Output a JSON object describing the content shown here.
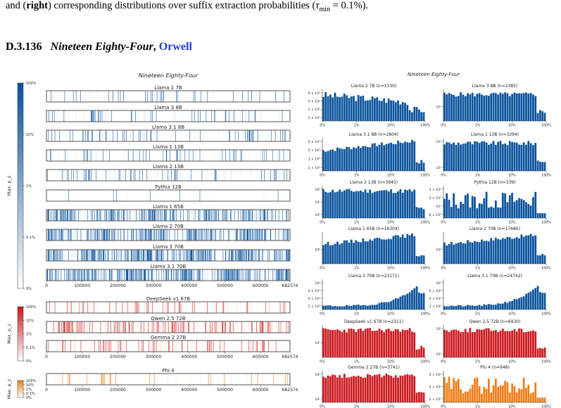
{
  "caption": {
    "prefix": "and (",
    "bold": "right",
    "rest": ") corresponding distributions over suffix extraction probabilities (",
    "tau": "τ",
    "tau_sub": "min",
    "tau_rest": " = 0.1%)."
  },
  "section": {
    "number": "D.3.136",
    "title": "Nineteen Eighty-Four",
    "comma": ",",
    "author": "Orwell"
  },
  "colors": {
    "blue": "#08519c",
    "red": "#cb181d",
    "orange": "#f07c16"
  },
  "chart_data": [
    {
      "type": "heatmap",
      "title": "Nineteen Eighty-Four",
      "x_ticks": [
        "0",
        "100000",
        "200000",
        "300000",
        "400000",
        "500000",
        "600000",
        "682574"
      ],
      "x_range": [
        0,
        682574
      ],
      "groups": [
        {
          "color": "blue",
          "colorbar_label": "Max. p_z",
          "colorbar_ticks": [
            "100%",
            "10%",
            "1%",
            "0.1%",
            "0%"
          ],
          "series": [
            {
              "name": "Llama 2 7B",
              "density": 0.08
            },
            {
              "name": "Llama 3 8B",
              "density": 0.12
            },
            {
              "name": "Llama 3.1 8B",
              "density": 0.14
            },
            {
              "name": "Llama 1 13B",
              "density": 0.13
            },
            {
              "name": "Llama 2 13B",
              "density": 0.14
            },
            {
              "name": "Pythia 12B",
              "density": 0.03
            },
            {
              "name": "Llama 1 65B",
              "density": 0.55
            },
            {
              "name": "Llama 2 70B",
              "density": 0.6
            },
            {
              "name": "Llama 3 70B",
              "density": 0.75
            },
            {
              "name": "Llama 3.1 70B",
              "density": 0.8
            }
          ]
        },
        {
          "color": "red",
          "colorbar_label": "Max. p_z",
          "colorbar_ticks": [
            "100%",
            "10%",
            "1%",
            "0.1%",
            "0%"
          ],
          "series": [
            {
              "name": "DeepSeek v1 67B",
              "density": 0.12
            },
            {
              "name": "Qwen 2.5 72B",
              "density": 0.3
            },
            {
              "name": "Gemma 2 27B",
              "density": 0.15
            }
          ]
        },
        {
          "color": "orange",
          "colorbar_label": "Max. p_z",
          "colorbar_ticks": [
            "100%",
            "10%",
            "1%",
            "0.1%",
            "0%"
          ],
          "series": [
            {
              "name": "Phi 4",
              "density": 0.06
            }
          ]
        }
      ]
    },
    {
      "type": "bar",
      "title": "Nineteen Eighty-Four",
      "x_ticks": [
        "0%",
        "1%",
        "10%",
        "100%"
      ],
      "panels": [
        {
          "name": "Llama 2 7B (n=1330)",
          "color": "blue",
          "y_ticks": [
            "6 × 10¹",
            "4 × 10¹",
            "3 × 10¹",
            "2 × 10¹"
          ],
          "shape": "flat_drop",
          "seed": 3
        },
        {
          "name": "Llama 3 8B (n=2385)",
          "color": "blue",
          "y_ticks": [
            "10¹"
          ],
          "shape": "flat",
          "seed": 5
        },
        {
          "name": "Llama 3.1 8B (n=2804)",
          "color": "blue",
          "y_ticks": [
            "6 × 10¹",
            "4 × 10¹",
            "3 × 10¹",
            "2 × 10¹"
          ],
          "shape": "rise",
          "seed": 7
        },
        {
          "name": "Llama 1 13B (n=3294)",
          "color": "blue",
          "y_ticks": [
            "10²",
            "10¹"
          ],
          "shape": "flat",
          "seed": 9
        },
        {
          "name": "Llama 2 13B (n=3945)",
          "color": "blue",
          "y_ticks": [
            "10²",
            "10¹",
            "10⁰"
          ],
          "shape": "flat",
          "seed": 11
        },
        {
          "name": "Pythia 12B (n=339)",
          "color": "blue",
          "y_ticks": [
            "3 × 10¹",
            "2 × 10¹",
            "10¹",
            "6 × 10⁰"
          ],
          "shape": "noisy",
          "seed": 13
        },
        {
          "name": "Llama 1 65B (n=16304)",
          "color": "blue",
          "y_ticks": [
            "10²"
          ],
          "shape": "rise",
          "seed": 15
        },
        {
          "name": "Llama 2 70B (n=17686)",
          "color": "blue",
          "y_ticks": [
            "10²"
          ],
          "shape": "rise",
          "seed": 17
        },
        {
          "name": "Llama 3 70B (n=23171)",
          "color": "blue",
          "y_ticks": [
            "10³",
            "6 × 10²",
            "4 × 10²",
            "3 × 10²"
          ],
          "shape": "steep",
          "seed": 19
        },
        {
          "name": "Llama 3.1 70B (n=24742)",
          "color": "blue",
          "y_ticks": [
            "10³",
            "6 × 10²",
            "4 × 10²",
            "3 × 10²"
          ],
          "shape": "steep",
          "seed": 21
        },
        {
          "name": "DeepSeek v1 67B (n=2311)",
          "color": "red",
          "y_ticks": [
            "10¹"
          ],
          "shape": "flat",
          "seed": 23
        },
        {
          "name": "Qwen 2.5 72B (n=6930)",
          "color": "red",
          "y_ticks": [
            "10²",
            "10¹"
          ],
          "shape": "flat",
          "seed": 25
        },
        {
          "name": "Gemma 2 27B (n=3741)",
          "color": "red",
          "y_ticks": [
            "10²",
            "10¹"
          ],
          "shape": "flat",
          "seed": 27
        },
        {
          "name": "Phi 4 (n=948)",
          "color": "orange",
          "y_ticks": [
            "4 × 10¹",
            "3 × 10¹",
            "2 × 10¹"
          ],
          "shape": "noisy",
          "seed": 29
        }
      ]
    }
  ]
}
